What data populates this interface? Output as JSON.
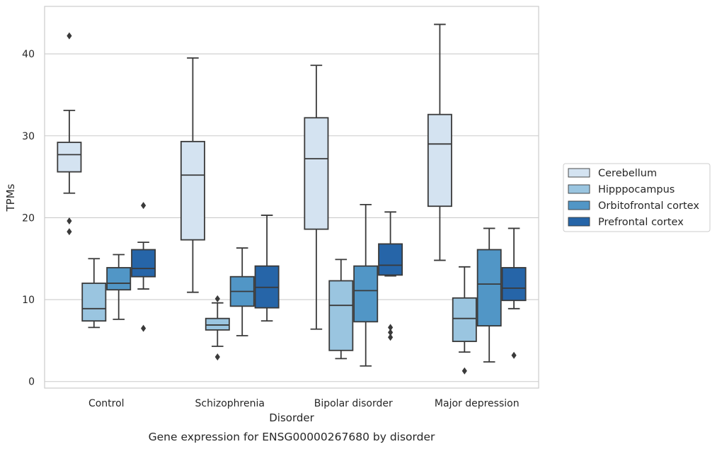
{
  "chart_data": {
    "type": "box",
    "title": "",
    "caption": "Gene expression for ENSG00000267680 by disorder",
    "xlabel": "Disorder",
    "ylabel": "TPMs",
    "ylim": [
      -0.8,
      45.8
    ],
    "yticks": [
      0,
      10,
      20,
      30,
      40
    ],
    "grid": "horizontal",
    "legend_position": "right",
    "categories": [
      "Control",
      "Schizophrenia",
      "Bipolar disorder",
      "Major depression"
    ],
    "series": [
      {
        "name": "Cerebellum",
        "color": "#d4e3f1",
        "boxes": [
          {
            "whislo": 23.0,
            "q1": 25.6,
            "med": 27.7,
            "q3": 29.2,
            "whishi": 33.1,
            "fliers": [
              42.2,
              19.6,
              18.3
            ]
          },
          {
            "whislo": 10.9,
            "q1": 17.3,
            "med": 25.2,
            "q3": 29.3,
            "whishi": 39.5,
            "fliers": []
          },
          {
            "whislo": 6.4,
            "q1": 18.6,
            "med": 27.2,
            "q3": 32.2,
            "whishi": 38.6,
            "fliers": []
          },
          {
            "whislo": 14.8,
            "q1": 21.4,
            "med": 29.0,
            "q3": 32.6,
            "whishi": 43.6,
            "fliers": []
          }
        ]
      },
      {
        "name": "Hipppocampus",
        "color": "#9ac5e0",
        "boxes": [
          {
            "whislo": 6.6,
            "q1": 7.4,
            "med": 8.9,
            "q3": 12.0,
            "whishi": 15.0,
            "fliers": []
          },
          {
            "whislo": 4.3,
            "q1": 6.3,
            "med": 6.9,
            "q3": 7.7,
            "whishi": 9.6,
            "fliers": [
              10.1,
              3.0
            ]
          },
          {
            "whislo": 2.8,
            "q1": 3.8,
            "med": 9.3,
            "q3": 12.3,
            "whishi": 14.9,
            "fliers": []
          },
          {
            "whislo": 3.6,
            "q1": 4.9,
            "med": 7.7,
            "q3": 10.2,
            "whishi": 14.0,
            "fliers": [
              1.3
            ]
          }
        ]
      },
      {
        "name": "Orbitofrontal cortex",
        "color": "#5196c6",
        "boxes": [
          {
            "whislo": 7.6,
            "q1": 11.2,
            "med": 12.0,
            "q3": 13.9,
            "whishi": 15.5,
            "fliers": []
          },
          {
            "whislo": 5.6,
            "q1": 9.2,
            "med": 11.0,
            "q3": 12.8,
            "whishi": 16.3,
            "fliers": []
          },
          {
            "whislo": 1.9,
            "q1": 7.3,
            "med": 11.1,
            "q3": 14.1,
            "whishi": 21.6,
            "fliers": []
          },
          {
            "whislo": 2.4,
            "q1": 6.8,
            "med": 11.9,
            "q3": 16.1,
            "whishi": 18.7,
            "fliers": []
          }
        ]
      },
      {
        "name": "Prefrontal cortex",
        "color": "#2665a8",
        "boxes": [
          {
            "whislo": 11.3,
            "q1": 12.8,
            "med": 13.8,
            "q3": 16.1,
            "whishi": 17.0,
            "fliers": [
              21.5,
              6.5
            ]
          },
          {
            "whislo": 7.4,
            "q1": 9.0,
            "med": 11.5,
            "q3": 14.1,
            "whishi": 20.3,
            "fliers": []
          },
          {
            "whislo": 12.9,
            "q1": 13.0,
            "med": 14.2,
            "q3": 16.8,
            "whishi": 20.7,
            "fliers": [
              6.6,
              6.0,
              5.4
            ]
          },
          {
            "whislo": 8.9,
            "q1": 9.9,
            "med": 11.4,
            "q3": 13.9,
            "whishi": 18.7,
            "fliers": [
              3.2
            ]
          }
        ]
      }
    ]
  }
}
